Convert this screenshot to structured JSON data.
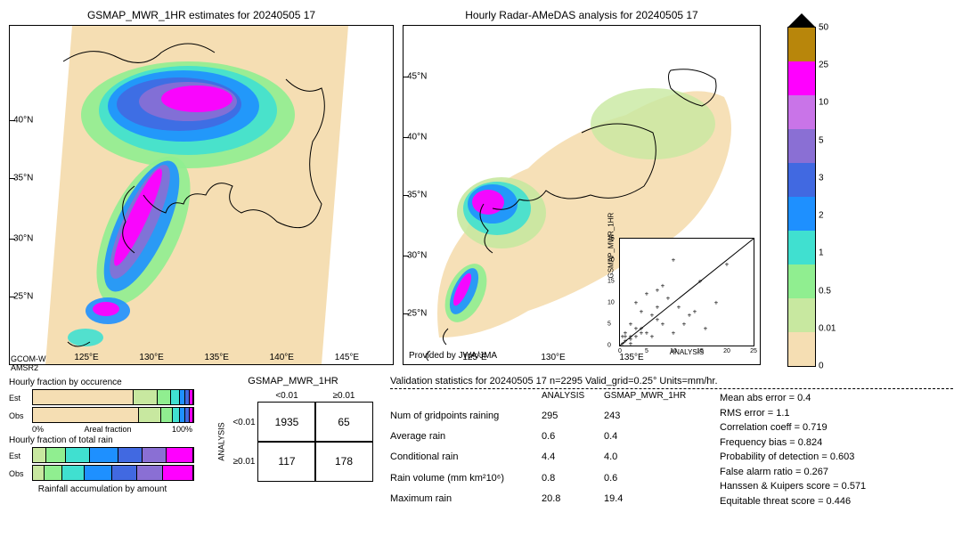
{
  "colorbar": {
    "ticks": [
      "50",
      "25",
      "10",
      "5",
      "3",
      "2",
      "1",
      "0.5",
      "0.01",
      "0"
    ],
    "colors": [
      "#b8860b",
      "#ff00ff",
      "#c974e8",
      "#8a6fd4",
      "#4169e1",
      "#1e90ff",
      "#40e0d0",
      "#90ee90",
      "#c8e8a0",
      "#f5deb3"
    ]
  },
  "map_left": {
    "title": "GSMAP_MWR_1HR estimates for 20240505 17",
    "yticks": [
      "40°N",
      "35°N",
      "30°N",
      "25°N"
    ],
    "ytick_pos": [
      28,
      45,
      63,
      80
    ],
    "xticks": [
      "125°E",
      "130°E",
      "135°E",
      "140°E",
      "145°E"
    ],
    "xtick_pos": [
      20,
      37,
      54,
      71,
      88
    ],
    "sensor_lines": [
      "GCOM-W",
      "AMSR2"
    ]
  },
  "map_right": {
    "title": "Hourly Radar-AMeDAS analysis for 20240505 17",
    "yticks": [
      "45°N",
      "40°N",
      "35°N",
      "30°N",
      "25°N"
    ],
    "ytick_pos": [
      15,
      33,
      50,
      68,
      85
    ],
    "xticks": [
      "125°E",
      "130°E",
      "135°E"
    ],
    "xtick_pos": [
      20,
      42,
      64
    ],
    "provided": "Provided by JWA/JMA"
  },
  "scatter": {
    "ylab": "GSMAP_MWR_1HR",
    "xlab": "ANALYSIS",
    "xlim": [
      0,
      25
    ],
    "ylim": [
      0,
      25
    ],
    "ticks": [
      0,
      5,
      10,
      15,
      20,
      25
    ],
    "points": [
      [
        0.5,
        0.4
      ],
      [
        1,
        1
      ],
      [
        2,
        1.5
      ],
      [
        1,
        3
      ],
      [
        3,
        2
      ],
      [
        4,
        4
      ],
      [
        2,
        5
      ],
      [
        5,
        3
      ],
      [
        6,
        2
      ],
      [
        7,
        6
      ],
      [
        4,
        8
      ],
      [
        8,
        5
      ],
      [
        10,
        3
      ],
      [
        3,
        10
      ],
      [
        12,
        5
      ],
      [
        5,
        12
      ],
      [
        14,
        8
      ],
      [
        8,
        14
      ],
      [
        16,
        4
      ],
      [
        18,
        10
      ],
      [
        20,
        19
      ],
      [
        10,
        20
      ],
      [
        15,
        15
      ],
      [
        6,
        7
      ],
      [
        7,
        9
      ],
      [
        2,
        2
      ],
      [
        3,
        4
      ],
      [
        4,
        3
      ],
      [
        1,
        2
      ],
      [
        2,
        0.5
      ],
      [
        0.5,
        2
      ],
      [
        9,
        11
      ],
      [
        11,
        9
      ],
      [
        13,
        7
      ],
      [
        7,
        13
      ]
    ]
  },
  "fractions": {
    "occurrence_title": "Hourly fraction by occurence",
    "totalrain_title": "Hourly fraction of total rain",
    "accum_title": "Rainfall accumulation by amount",
    "axis_label": "Areal fraction",
    "axis_min": "0%",
    "axis_max": "100%",
    "est_label": "Est",
    "obs_label": "Obs",
    "occurrence_est": [
      [
        "#f5deb3",
        65
      ],
      [
        "#c8e8a0",
        15
      ],
      [
        "#90ee90",
        8
      ],
      [
        "#40e0d0",
        5
      ],
      [
        "#1e90ff",
        3
      ],
      [
        "#4169e1",
        2
      ],
      [
        "#ff00ff",
        2
      ]
    ],
    "occurrence_obs": [
      [
        "#f5deb3",
        68
      ],
      [
        "#c8e8a0",
        14
      ],
      [
        "#90ee90",
        7
      ],
      [
        "#40e0d0",
        4
      ],
      [
        "#1e90ff",
        3
      ],
      [
        "#4169e1",
        2
      ],
      [
        "#ff00ff",
        2
      ]
    ],
    "total_est": [
      [
        "#c8e8a0",
        8
      ],
      [
        "#90ee90",
        12
      ],
      [
        "#40e0d0",
        15
      ],
      [
        "#1e90ff",
        18
      ],
      [
        "#4169e1",
        15
      ],
      [
        "#8a6fd4",
        15
      ],
      [
        "#ff00ff",
        17
      ]
    ],
    "total_obs": [
      [
        "#c8e8a0",
        7
      ],
      [
        "#90ee90",
        11
      ],
      [
        "#40e0d0",
        14
      ],
      [
        "#1e90ff",
        17
      ],
      [
        "#4169e1",
        16
      ],
      [
        "#8a6fd4",
        16
      ],
      [
        "#ff00ff",
        19
      ]
    ]
  },
  "contingency": {
    "title": "GSMAP_MWR_1HR",
    "col_headers": [
      "<0.01",
      "≥0.01"
    ],
    "row_headers": [
      "<0.01",
      "≥0.01"
    ],
    "y_axis_label": "ANALYSIS",
    "cells": [
      [
        "1935",
        "65"
      ],
      [
        "117",
        "178"
      ]
    ]
  },
  "validation": {
    "title": "Validation statistics for 20240505 17  n=2295 Valid_grid=0.25°  Units=mm/hr.",
    "col_headers": [
      "ANALYSIS",
      "GSMAP_MWR_1HR"
    ],
    "rows": [
      {
        "label": "Num of gridpoints raining",
        "a": "295",
        "g": "243"
      },
      {
        "label": "Average rain",
        "a": "0.6",
        "g": "0.4"
      },
      {
        "label": "Conditional rain",
        "a": "4.4",
        "g": "4.0"
      },
      {
        "label": "Rain volume (mm km²10⁶)",
        "a": "0.8",
        "g": "0.6"
      },
      {
        "label": "Maximum rain",
        "a": "20.8",
        "g": "19.4"
      }
    ],
    "metrics": [
      {
        "label": "Mean abs error =",
        "v": "0.4"
      },
      {
        "label": "RMS error =",
        "v": "1.1"
      },
      {
        "label": "Correlation coeff =",
        "v": "0.719"
      },
      {
        "label": "Frequency bias =",
        "v": "0.824"
      },
      {
        "label": "Probability of detection =",
        "v": "0.603"
      },
      {
        "label": "False alarm ratio =",
        "v": "0.267"
      },
      {
        "label": "Hanssen & Kuipers score =",
        "v": "0.571"
      },
      {
        "label": "Equitable threat score =",
        "v": "0.446"
      }
    ]
  }
}
